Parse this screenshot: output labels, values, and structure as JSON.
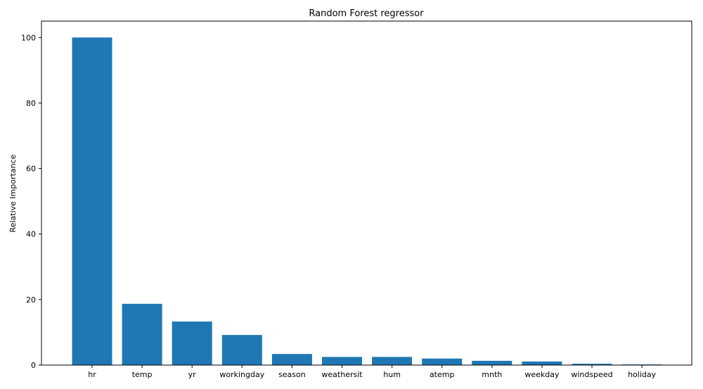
{
  "chart_data": {
    "type": "bar",
    "title": "Random Forest regressor",
    "xlabel": "",
    "ylabel": "Relative Importance",
    "categories": [
      "hr",
      "temp",
      "yr",
      "workingday",
      "season",
      "weathersit",
      "hum",
      "atemp",
      "mnth",
      "weekday",
      "windspeed",
      "holiday"
    ],
    "values": [
      100,
      18.7,
      13.3,
      9.2,
      3.4,
      2.5,
      2.5,
      2.0,
      1.3,
      1.1,
      0.4,
      0.2
    ],
    "ylim": [
      0,
      105
    ],
    "yticks": [
      0,
      20,
      40,
      60,
      80,
      100
    ],
    "grid": false,
    "colors": {
      "bar": "#1f77b4",
      "axis": "#000000",
      "background": "#ffffff"
    }
  }
}
